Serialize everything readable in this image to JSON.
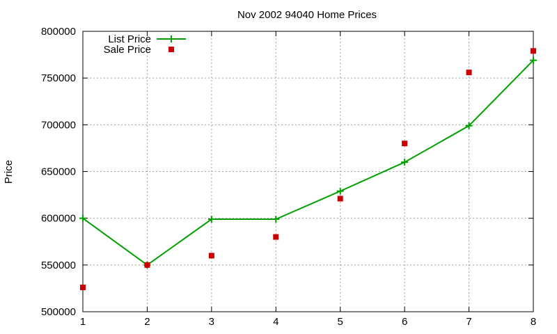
{
  "chart_data": {
    "type": "line",
    "title": "Nov 2002 94040 Home Prices",
    "xlabel": "",
    "ylabel": "Price",
    "x": [
      1,
      2,
      3,
      4,
      5,
      6,
      7,
      8
    ],
    "xlim": [
      1,
      8
    ],
    "ylim": [
      500000,
      800000
    ],
    "xticks": [
      1,
      2,
      3,
      4,
      5,
      6,
      7,
      8
    ],
    "yticks": [
      500000,
      550000,
      600000,
      650000,
      700000,
      750000,
      800000
    ],
    "grid": true,
    "legend_position": "top-left",
    "series": [
      {
        "name": "List Price",
        "style": "lines-points",
        "marker": "plus",
        "color": "#00a000",
        "values": [
          600000,
          550000,
          599000,
          599000,
          629000,
          660000,
          699000,
          769000
        ]
      },
      {
        "name": "Sale Price",
        "style": "points",
        "marker": "square",
        "color": "#cc0000",
        "values": [
          526000,
          550000,
          560000,
          580000,
          621000,
          680000,
          756000,
          779000
        ]
      }
    ]
  }
}
